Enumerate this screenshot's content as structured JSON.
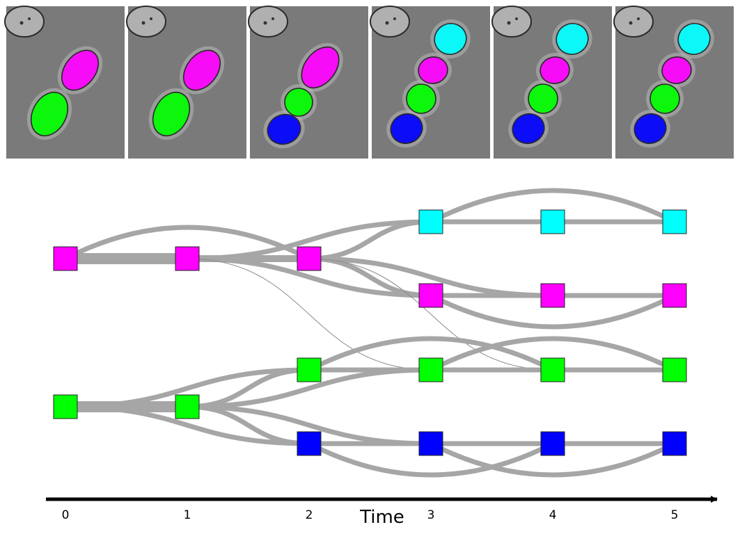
{
  "panels": [
    {
      "frame": 0,
      "cells": [
        {
          "color": "magenta",
          "kind": "rod"
        },
        {
          "color": "green",
          "kind": "rod"
        }
      ]
    },
    {
      "frame": 1,
      "cells": [
        {
          "color": "magenta",
          "kind": "rod"
        },
        {
          "color": "green",
          "kind": "rod"
        }
      ]
    },
    {
      "frame": 2,
      "cells": [
        {
          "color": "magenta",
          "kind": "rod"
        },
        {
          "color": "green",
          "kind": "round"
        },
        {
          "color": "blue",
          "kind": "round"
        }
      ]
    },
    {
      "frame": 3,
      "cells": [
        {
          "color": "cyan",
          "kind": "round"
        },
        {
          "color": "magenta",
          "kind": "round"
        },
        {
          "color": "green",
          "kind": "round"
        },
        {
          "color": "blue",
          "kind": "round"
        }
      ]
    },
    {
      "frame": 4,
      "cells": [
        {
          "color": "cyan",
          "kind": "round"
        },
        {
          "color": "magenta",
          "kind": "round"
        },
        {
          "color": "green",
          "kind": "round"
        },
        {
          "color": "blue",
          "kind": "round"
        }
      ]
    },
    {
      "frame": 5,
      "cells": [
        {
          "color": "cyan",
          "kind": "round"
        },
        {
          "color": "magenta",
          "kind": "round"
        },
        {
          "color": "green",
          "kind": "round"
        },
        {
          "color": "blue",
          "kind": "round"
        }
      ]
    }
  ],
  "colors": {
    "magenta": "#ff00ff",
    "green": "#00ff00",
    "blue": "#0000ff",
    "cyan": "#00ffff",
    "edge": "#a6a6a6",
    "axis": "#000000",
    "panel_bg": "#7a7a7a"
  },
  "graph": {
    "nodes": [
      {
        "id": "m0",
        "time": 0,
        "color": "magenta"
      },
      {
        "id": "g0",
        "time": 0,
        "color": "green"
      },
      {
        "id": "m1",
        "time": 1,
        "color": "magenta"
      },
      {
        "id": "g1",
        "time": 1,
        "color": "green"
      },
      {
        "id": "m2",
        "time": 2,
        "color": "magenta"
      },
      {
        "id": "g2",
        "time": 2,
        "color": "green"
      },
      {
        "id": "b2",
        "time": 2,
        "color": "blue"
      },
      {
        "id": "c3",
        "time": 3,
        "color": "cyan"
      },
      {
        "id": "m3",
        "time": 3,
        "color": "magenta"
      },
      {
        "id": "g3",
        "time": 3,
        "color": "green"
      },
      {
        "id": "b3",
        "time": 3,
        "color": "blue"
      },
      {
        "id": "c4",
        "time": 4,
        "color": "cyan"
      },
      {
        "id": "m4",
        "time": 4,
        "color": "magenta"
      },
      {
        "id": "g4",
        "time": 4,
        "color": "green"
      },
      {
        "id": "b4",
        "time": 4,
        "color": "blue"
      },
      {
        "id": "c5",
        "time": 5,
        "color": "cyan"
      },
      {
        "id": "m5",
        "time": 5,
        "color": "magenta"
      },
      {
        "id": "g5",
        "time": 5,
        "color": "green"
      },
      {
        "id": "b5",
        "time": 5,
        "color": "blue"
      }
    ],
    "edges": [
      {
        "from": "m0",
        "to": "m1",
        "weight": 3
      },
      {
        "from": "m0",
        "to": "m2",
        "weight": 1
      },
      {
        "from": "g0",
        "to": "g1",
        "weight": 3
      },
      {
        "from": "g0",
        "to": "g2",
        "weight": 1
      },
      {
        "from": "g0",
        "to": "b2",
        "weight": 1
      },
      {
        "from": "m1",
        "to": "m2",
        "weight": 2
      },
      {
        "from": "m1",
        "to": "c3",
        "weight": 1
      },
      {
        "from": "m1",
        "to": "m3",
        "weight": 1
      },
      {
        "from": "m1",
        "to": "g3",
        "weight": 0.2
      },
      {
        "from": "g1",
        "to": "g2",
        "weight": 1
      },
      {
        "from": "g1",
        "to": "b2",
        "weight": 1
      },
      {
        "from": "g1",
        "to": "g3",
        "weight": 1
      },
      {
        "from": "g1",
        "to": "b3",
        "weight": 1
      },
      {
        "from": "m2",
        "to": "c3",
        "weight": 1
      },
      {
        "from": "m2",
        "to": "m3",
        "weight": 1
      },
      {
        "from": "m2",
        "to": "m4",
        "weight": 1
      },
      {
        "from": "m2",
        "to": "g4",
        "weight": 0.2
      },
      {
        "from": "g2",
        "to": "g3",
        "weight": 1
      },
      {
        "from": "g2",
        "to": "g4",
        "weight": 1
      },
      {
        "from": "b2",
        "to": "b3",
        "weight": 1
      },
      {
        "from": "b2",
        "to": "b4",
        "weight": 1
      },
      {
        "from": "c3",
        "to": "c4",
        "weight": 1
      },
      {
        "from": "c3",
        "to": "c5",
        "weight": 1
      },
      {
        "from": "m3",
        "to": "m4",
        "weight": 1
      },
      {
        "from": "m3",
        "to": "m5",
        "weight": 1
      },
      {
        "from": "g3",
        "to": "g4",
        "weight": 1
      },
      {
        "from": "g3",
        "to": "g5",
        "weight": 1
      },
      {
        "from": "b3",
        "to": "b4",
        "weight": 1
      },
      {
        "from": "b3",
        "to": "b5",
        "weight": 1
      },
      {
        "from": "c4",
        "to": "c5",
        "weight": 1
      },
      {
        "from": "m4",
        "to": "m5",
        "weight": 1
      },
      {
        "from": "g4",
        "to": "g5",
        "weight": 1
      },
      {
        "from": "b4",
        "to": "b5",
        "weight": 1
      }
    ]
  },
  "axis": {
    "label": "Time",
    "ticks": [
      "0",
      "1",
      "2",
      "3",
      "4",
      "5"
    ]
  }
}
